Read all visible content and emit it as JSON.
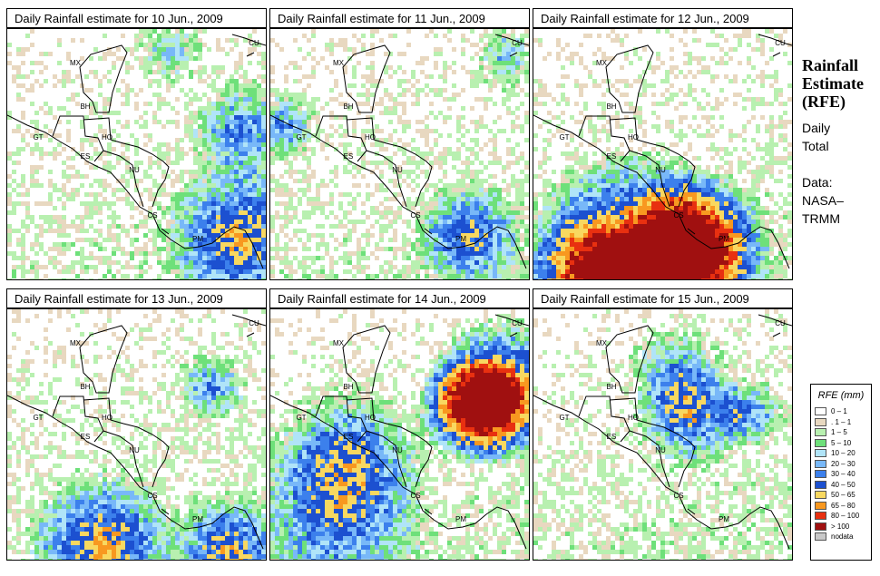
{
  "panels": [
    {
      "title": "Daily Rainfall estimate for  10 Jun., 2009",
      "seed": 11,
      "hotspots": [
        [
          0.88,
          0.82,
          4,
          0.55
        ],
        [
          0.62,
          0.08,
          2,
          0.3
        ],
        [
          0.9,
          0.4,
          3,
          0.4
        ]
      ]
    },
    {
      "title": "Daily Rainfall estimate for  11 Jun., 2009",
      "seed": 23,
      "hotspots": [
        [
          0.76,
          0.82,
          3,
          0.5
        ],
        [
          0.04,
          0.38,
          2,
          0.4
        ],
        [
          0.9,
          0.1,
          2,
          0.3
        ]
      ]
    },
    {
      "title": "Daily Rainfall estimate for  12 Jun., 2009",
      "seed": 37,
      "hotspots": [
        [
          0.38,
          0.93,
          6,
          0.9
        ],
        [
          0.62,
          0.86,
          4,
          0.8
        ],
        [
          0.2,
          0.95,
          3,
          0.4
        ]
      ]
    },
    {
      "title": "Daily Rainfall estimate for  13 Jun., 2009",
      "seed": 41,
      "hotspots": [
        [
          0.36,
          0.93,
          4,
          0.6
        ],
        [
          0.85,
          0.96,
          3,
          0.55
        ],
        [
          0.78,
          0.3,
          2,
          0.4
        ]
      ]
    },
    {
      "title": "Daily Rainfall estimate for  14 Jun., 2009",
      "seed": 53,
      "hotspots": [
        [
          0.88,
          0.32,
          4,
          0.8
        ],
        [
          0.78,
          0.38,
          3,
          0.7
        ],
        [
          0.25,
          0.8,
          5,
          0.45
        ],
        [
          0.3,
          0.55,
          4,
          0.35
        ]
      ]
    },
    {
      "title": "Daily Rainfall estimate for  15 Jun., 2009",
      "seed": 67,
      "hotspots": [
        [
          0.6,
          0.42,
          3,
          0.45
        ],
        [
          0.82,
          0.4,
          2,
          0.4
        ],
        [
          0.55,
          0.25,
          3,
          0.35
        ]
      ]
    }
  ],
  "country_labels": [
    "MX",
    "BH",
    "GT",
    "HO",
    "ES",
    "NU",
    "CS",
    "PM",
    "CU"
  ],
  "side": {
    "title_line1": "Rainfall",
    "title_line2": "Estimate",
    "title_line3": "(RFE)",
    "period_line1": "Daily",
    "period_line2": "Total",
    "source_line1": "Data:",
    "source_line2": "NASA–",
    "source_line3": "TRMM"
  },
  "legend": {
    "title": "RFE (mm)",
    "classes": [
      {
        "label": "0 – 1",
        "color": "#ffffff"
      },
      {
        "label": ". 1 – 1",
        "color": "#e8d8c0"
      },
      {
        "label": "1 – 5",
        "color": "#b8f0b0"
      },
      {
        "label": "5 – 10",
        "color": "#6ee07a"
      },
      {
        "label": "10 – 20",
        "color": "#b0e4f8"
      },
      {
        "label": "20 – 30",
        "color": "#78b8f8"
      },
      {
        "label": "30 – 40",
        "color": "#3c80ec"
      },
      {
        "label": "40 – 50",
        "color": "#1c50d0"
      },
      {
        "label": "50 – 65",
        "color": "#f8d860"
      },
      {
        "label": "65 – 80",
        "color": "#f89820"
      },
      {
        "label": "80 – 100",
        "color": "#e83010"
      },
      {
        "label": "> 100",
        "color": "#a01010"
      },
      {
        "label": "nodata",
        "color": "#c8c8c8"
      }
    ]
  }
}
